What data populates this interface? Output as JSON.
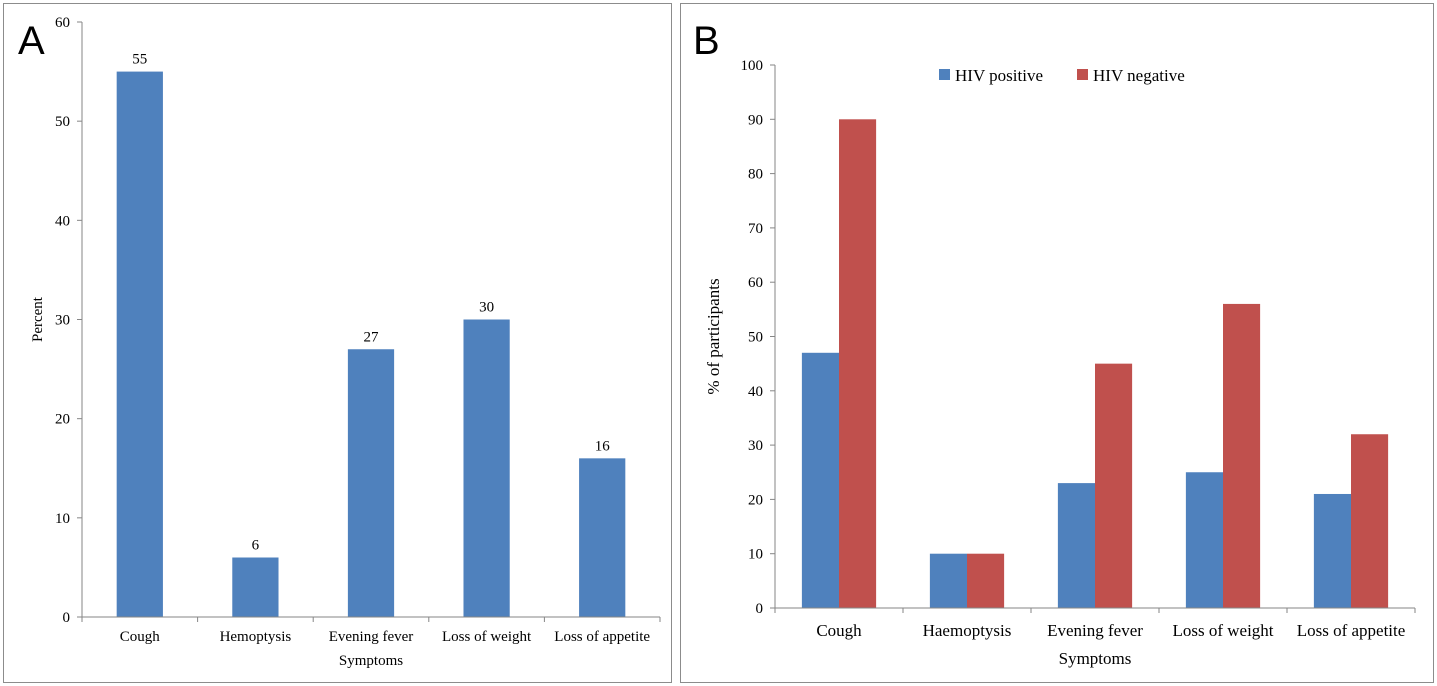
{
  "chart_data": [
    {
      "panel": "A",
      "type": "bar",
      "title": "",
      "xlabel": "Symptoms",
      "ylabel": "Percent",
      "categories": [
        "Cough",
        "Hemoptysis",
        "Evening fever",
        "Loss of weight",
        "Loss of appetite"
      ],
      "values": [
        55,
        6,
        27,
        30,
        16
      ],
      "ylim": [
        0,
        60
      ],
      "yticks": [
        0,
        10,
        20,
        30,
        40,
        50,
        60
      ],
      "data_labels": true,
      "grid": false,
      "color": "#4f81bd"
    },
    {
      "panel": "B",
      "type": "bar",
      "title": "",
      "xlabel": "Symptoms",
      "ylabel": "% of participants",
      "categories": [
        "Cough",
        "Haemoptysis",
        "Evening fever",
        "Loss of weight",
        "Loss of appetite"
      ],
      "series": [
        {
          "name": "HIV positive",
          "values": [
            47,
            10,
            23,
            25,
            21
          ],
          "color": "#4f81bd"
        },
        {
          "name": "HIV negative",
          "values": [
            90,
            10,
            45,
            56,
            32
          ],
          "color": "#c0504d"
        }
      ],
      "ylim": [
        0,
        100
      ],
      "yticks": [
        0,
        10,
        20,
        30,
        40,
        50,
        60,
        70,
        80,
        90,
        100
      ],
      "legend": "top",
      "grid": false
    }
  ]
}
